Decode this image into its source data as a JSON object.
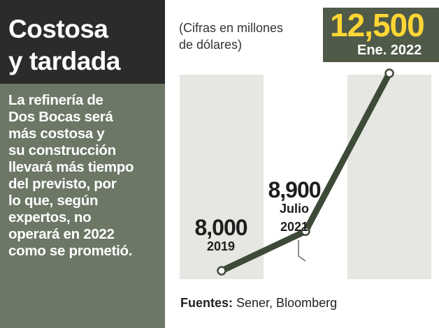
{
  "headline": {
    "line1": "Costosa",
    "line2": "y tardada"
  },
  "description": [
    "La refinería de",
    "Dos Bocas será",
    "más costosa y",
    "su construcción",
    "llevará más tiempo",
    "del previsto, por",
    "lo que, según",
    "expertos, no",
    "operará en 2022",
    "como se prometió."
  ],
  "subtitle": {
    "line1": "(Cifras en millones",
    "line2": "de dólares)"
  },
  "source": {
    "label": "Fuentes:",
    "text": " Sener, Bloomberg"
  },
  "colors": {
    "line": "#3e4a38",
    "band": "#e6e7e2",
    "accent_value": "#ffd634",
    "highlight_bg": "#4f5a48",
    "panel": "#6c7766",
    "title_bg": "#2b2b2b"
  },
  "chart_data": {
    "type": "line",
    "x": [
      "2019",
      "Julio 2021",
      "Ene. 2022"
    ],
    "series": [
      {
        "values": [
          8000,
          8900,
          12500
        ]
      }
    ],
    "data_labels": [
      "8,000",
      "8,900",
      "12,500"
    ],
    "x_labels": [
      [
        "2019"
      ],
      [
        "Julio",
        "2021"
      ],
      [
        "Ene. 2022"
      ]
    ],
    "highlight_point": {
      "value_text": "12,500",
      "label": "Ene. 2022"
    },
    "grid": false,
    "legend": "none"
  }
}
